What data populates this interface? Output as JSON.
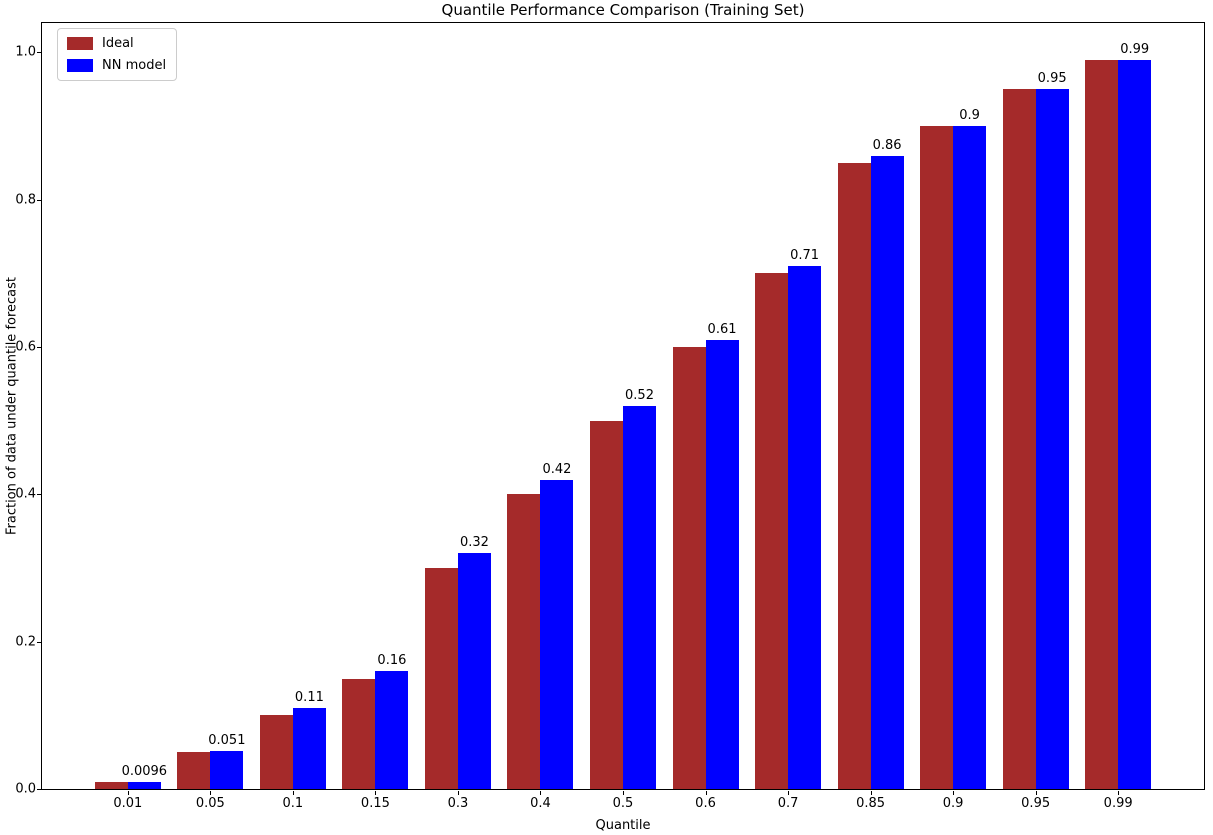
{
  "chart_data": {
    "type": "bar",
    "title": "Quantile Performance Comparison (Training Set)",
    "xlabel": "Quantile",
    "ylabel": "Fraction of data under quantile forecast",
    "categories": [
      "0.01",
      "0.05",
      "0.1",
      "0.15",
      "0.3",
      "0.4",
      "0.5",
      "0.6",
      "0.7",
      "0.85",
      "0.9",
      "0.95",
      "0.99"
    ],
    "series": [
      {
        "name": "Ideal",
        "color": "#A52A2A",
        "values": [
          0.01,
          0.05,
          0.1,
          0.15,
          0.3,
          0.4,
          0.5,
          0.6,
          0.7,
          0.85,
          0.9,
          0.95,
          0.99
        ]
      },
      {
        "name": "NN model",
        "color": "#0000FF",
        "values": [
          0.0096,
          0.051,
          0.11,
          0.16,
          0.32,
          0.42,
          0.52,
          0.61,
          0.71,
          0.86,
          0.9,
          0.95,
          0.99
        ]
      }
    ],
    "bar_labels": [
      "0.0096",
      "0.051",
      "0.11",
      "0.16",
      "0.32",
      "0.42",
      "0.52",
      "0.61",
      "0.71",
      "0.86",
      "0.9",
      "0.95",
      "0.99"
    ],
    "yticks": [
      "0.0",
      "0.2",
      "0.4",
      "0.6",
      "0.8",
      "1.0"
    ],
    "ylim": [
      0,
      1.04
    ],
    "legend_position": "upper left",
    "grid": false
  }
}
